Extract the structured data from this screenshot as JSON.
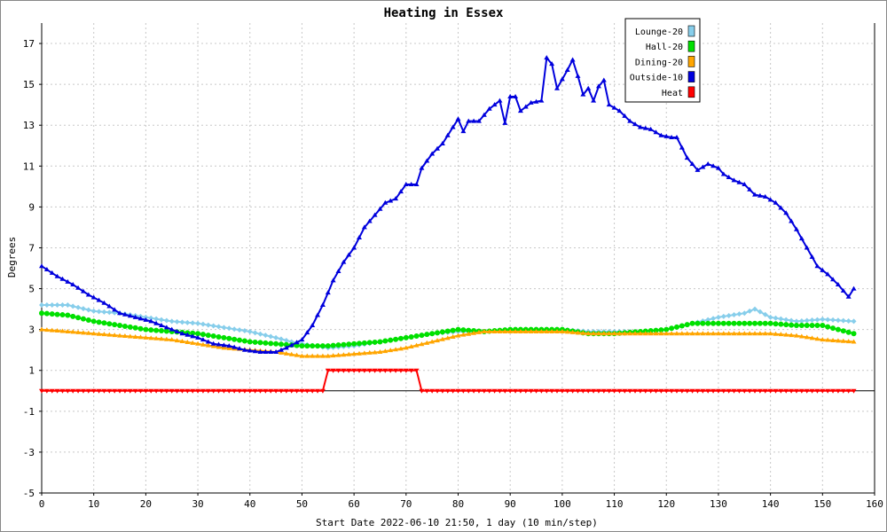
{
  "chart_data": {
    "type": "line",
    "title": "Heating in Essex",
    "xlabel": "Start Date 2022-06-10 21:50, 1 day (10 min/step)",
    "ylabel": "Degrees",
    "xlim": [
      0,
      160
    ],
    "ylim": [
      -5,
      18
    ],
    "x_ticks": [
      0,
      10,
      20,
      30,
      40,
      50,
      60,
      70,
      80,
      90,
      100,
      110,
      120,
      130,
      140,
      150,
      160
    ],
    "y_ticks": [
      -5,
      -3,
      -1,
      1,
      3,
      5,
      7,
      9,
      11,
      13,
      15,
      17
    ],
    "grid": true,
    "legend_position": "top-right",
    "series": [
      {
        "name": "Lounge-20",
        "color": "#87ceeb",
        "marker": "diamond",
        "points": [
          [
            0,
            4.2
          ],
          [
            5,
            4.2
          ],
          [
            10,
            3.9
          ],
          [
            15,
            3.8
          ],
          [
            20,
            3.6
          ],
          [
            25,
            3.4
          ],
          [
            30,
            3.3
          ],
          [
            35,
            3.1
          ],
          [
            40,
            2.9
          ],
          [
            45,
            2.6
          ],
          [
            48,
            2.4
          ],
          [
            50,
            2.3
          ],
          [
            55,
            2.1
          ],
          [
            60,
            2.2
          ],
          [
            65,
            2.4
          ],
          [
            70,
            2.6
          ],
          [
            75,
            2.8
          ],
          [
            80,
            2.9
          ],
          [
            85,
            2.9
          ],
          [
            90,
            3.0
          ],
          [
            95,
            3.0
          ],
          [
            100,
            3.0
          ],
          [
            105,
            2.9
          ],
          [
            110,
            2.9
          ],
          [
            115,
            2.9
          ],
          [
            120,
            3.0
          ],
          [
            125,
            3.3
          ],
          [
            130,
            3.6
          ],
          [
            135,
            3.8
          ],
          [
            137,
            4.0
          ],
          [
            140,
            3.6
          ],
          [
            145,
            3.4
          ],
          [
            150,
            3.5
          ],
          [
            156,
            3.4
          ]
        ]
      },
      {
        "name": "Hall-20",
        "color": "#00e000",
        "marker": "circle",
        "points": [
          [
            0,
            3.8
          ],
          [
            5,
            3.7
          ],
          [
            10,
            3.4
          ],
          [
            15,
            3.2
          ],
          [
            20,
            3.0
          ],
          [
            25,
            2.9
          ],
          [
            30,
            2.8
          ],
          [
            35,
            2.6
          ],
          [
            40,
            2.4
          ],
          [
            45,
            2.3
          ],
          [
            50,
            2.2
          ],
          [
            55,
            2.2
          ],
          [
            60,
            2.3
          ],
          [
            65,
            2.4
          ],
          [
            70,
            2.6
          ],
          [
            75,
            2.8
          ],
          [
            80,
            3.0
          ],
          [
            85,
            2.9
          ],
          [
            90,
            3.0
          ],
          [
            95,
            3.0
          ],
          [
            100,
            3.0
          ],
          [
            105,
            2.8
          ],
          [
            110,
            2.8
          ],
          [
            115,
            2.9
          ],
          [
            120,
            3.0
          ],
          [
            125,
            3.3
          ],
          [
            130,
            3.3
          ],
          [
            135,
            3.3
          ],
          [
            140,
            3.3
          ],
          [
            145,
            3.2
          ],
          [
            150,
            3.2
          ],
          [
            156,
            2.8
          ]
        ]
      },
      {
        "name": "Dining-20",
        "color": "#ffa500",
        "marker": "triangle-up",
        "points": [
          [
            0,
            3.0
          ],
          [
            5,
            2.9
          ],
          [
            10,
            2.8
          ],
          [
            15,
            2.7
          ],
          [
            20,
            2.6
          ],
          [
            25,
            2.5
          ],
          [
            30,
            2.3
          ],
          [
            35,
            2.1
          ],
          [
            40,
            2.0
          ],
          [
            45,
            1.9
          ],
          [
            50,
            1.7
          ],
          [
            55,
            1.7
          ],
          [
            60,
            1.8
          ],
          [
            65,
            1.9
          ],
          [
            70,
            2.1
          ],
          [
            75,
            2.4
          ],
          [
            80,
            2.7
          ],
          [
            85,
            2.9
          ],
          [
            90,
            2.9
          ],
          [
            95,
            2.9
          ],
          [
            100,
            2.9
          ],
          [
            105,
            2.8
          ],
          [
            110,
            2.8
          ],
          [
            115,
            2.8
          ],
          [
            120,
            2.8
          ],
          [
            125,
            2.8
          ],
          [
            130,
            2.8
          ],
          [
            135,
            2.8
          ],
          [
            140,
            2.8
          ],
          [
            145,
            2.7
          ],
          [
            150,
            2.5
          ],
          [
            156,
            2.4
          ]
        ]
      },
      {
        "name": "Outside-10",
        "color": "#0000dd",
        "marker": "triangle-up",
        "points": [
          [
            0,
            6.1
          ],
          [
            3,
            5.6
          ],
          [
            6,
            5.2
          ],
          [
            9,
            4.7
          ],
          [
            12,
            4.3
          ],
          [
            15,
            3.8
          ],
          [
            18,
            3.6
          ],
          [
            21,
            3.4
          ],
          [
            24,
            3.1
          ],
          [
            27,
            2.8
          ],
          [
            30,
            2.6
          ],
          [
            33,
            2.3
          ],
          [
            36,
            2.2
          ],
          [
            39,
            2.0
          ],
          [
            42,
            1.9
          ],
          [
            45,
            1.9
          ],
          [
            47,
            2.1
          ],
          [
            50,
            2.5
          ],
          [
            52,
            3.2
          ],
          [
            54,
            4.2
          ],
          [
            56,
            5.4
          ],
          [
            58,
            6.3
          ],
          [
            60,
            7.0
          ],
          [
            62,
            8.0
          ],
          [
            64,
            8.6
          ],
          [
            66,
            9.2
          ],
          [
            68,
            9.4
          ],
          [
            70,
            10.1
          ],
          [
            72,
            10.1
          ],
          [
            73,
            10.9
          ],
          [
            75,
            11.6
          ],
          [
            77,
            12.1
          ],
          [
            79,
            12.9
          ],
          [
            80,
            13.3
          ],
          [
            81,
            12.7
          ],
          [
            82,
            13.2
          ],
          [
            84,
            13.2
          ],
          [
            86,
            13.8
          ],
          [
            88,
            14.2
          ],
          [
            89,
            13.1
          ],
          [
            90,
            14.4
          ],
          [
            91,
            14.4
          ],
          [
            92,
            13.7
          ],
          [
            94,
            14.1
          ],
          [
            96,
            14.2
          ],
          [
            97,
            16.3
          ],
          [
            98,
            16.0
          ],
          [
            99,
            14.8
          ],
          [
            101,
            15.7
          ],
          [
            102,
            16.2
          ],
          [
            103,
            15.4
          ],
          [
            104,
            14.5
          ],
          [
            105,
            14.8
          ],
          [
            106,
            14.2
          ],
          [
            107,
            14.9
          ],
          [
            108,
            15.2
          ],
          [
            109,
            14.0
          ],
          [
            111,
            13.7
          ],
          [
            113,
            13.2
          ],
          [
            115,
            12.9
          ],
          [
            117,
            12.8
          ],
          [
            119,
            12.5
          ],
          [
            121,
            12.4
          ],
          [
            122,
            12.4
          ],
          [
            124,
            11.4
          ],
          [
            126,
            10.8
          ],
          [
            128,
            11.1
          ],
          [
            130,
            10.9
          ],
          [
            131,
            10.6
          ],
          [
            133,
            10.3
          ],
          [
            135,
            10.1
          ],
          [
            137,
            9.6
          ],
          [
            139,
            9.5
          ],
          [
            141,
            9.2
          ],
          [
            143,
            8.7
          ],
          [
            145,
            7.9
          ],
          [
            147,
            7.0
          ],
          [
            149,
            6.1
          ],
          [
            151,
            5.7
          ],
          [
            153,
            5.2
          ],
          [
            155,
            4.6
          ],
          [
            156,
            5.0
          ]
        ]
      },
      {
        "name": "Heat",
        "color": "#ff0000",
        "marker": "triangle-down",
        "points": [
          [
            0,
            0
          ],
          [
            54,
            0
          ],
          [
            55,
            1
          ],
          [
            72,
            1
          ],
          [
            73,
            0
          ],
          [
            156,
            0
          ]
        ]
      }
    ]
  }
}
